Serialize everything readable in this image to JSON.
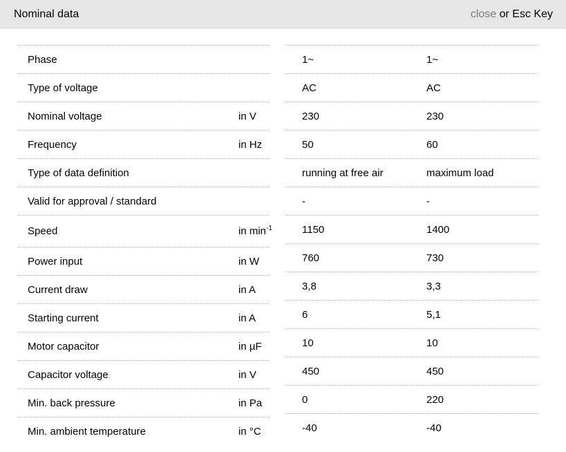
{
  "header": {
    "title": "Nominal data",
    "close_label": "close",
    "close_suffix": " or Esc Key"
  },
  "colors": {
    "header_bg": "#e6e6e6",
    "close_text": "#7d7d7d",
    "border_dotted": "#b0b0b0",
    "text": "#000000"
  },
  "table": {
    "rows": [
      {
        "label": "Phase",
        "unit": "",
        "sup": "",
        "val1": "1~",
        "val2": "1~"
      },
      {
        "label": "Type of voltage",
        "unit": "",
        "sup": "",
        "val1": "AC",
        "val2": "AC"
      },
      {
        "label": "Nominal voltage",
        "unit": "in V",
        "sup": "",
        "val1": "230",
        "val2": "230"
      },
      {
        "label": "Frequency",
        "unit": "in Hz",
        "sup": "",
        "val1": "50",
        "val2": "60"
      },
      {
        "label": "Type of data definition",
        "unit": "",
        "sup": "",
        "val1": "running at free air",
        "val2": "maximum load"
      },
      {
        "label": "Valid for approval / standard",
        "unit": "",
        "sup": "",
        "val1": "-",
        "val2": "-"
      },
      {
        "label": "Speed",
        "unit": "in min",
        "sup": "-1",
        "val1": "1150",
        "val2": "1400"
      },
      {
        "label": "Power input",
        "unit": "in W",
        "sup": "",
        "val1": "760",
        "val2": "730"
      },
      {
        "label": "Current draw",
        "unit": "in A",
        "sup": "",
        "val1": "3,8",
        "val2": "3,3"
      },
      {
        "label": "Starting current",
        "unit": "in A",
        "sup": "",
        "val1": "6",
        "val2": "5,1"
      },
      {
        "label": "Motor capacitor",
        "unit": "in µF",
        "sup": "",
        "val1": "10",
        "val2": "10"
      },
      {
        "label": "Capacitor voltage",
        "unit": "in V",
        "sup": "",
        "val1": "450",
        "val2": "450"
      },
      {
        "label": "Min. back pressure",
        "unit": "in Pa",
        "sup": "",
        "val1": "0",
        "val2": "220"
      },
      {
        "label": "Min. ambient temperature",
        "unit": "in °C",
        "sup": "",
        "val1": "-40",
        "val2": "-40"
      }
    ]
  }
}
